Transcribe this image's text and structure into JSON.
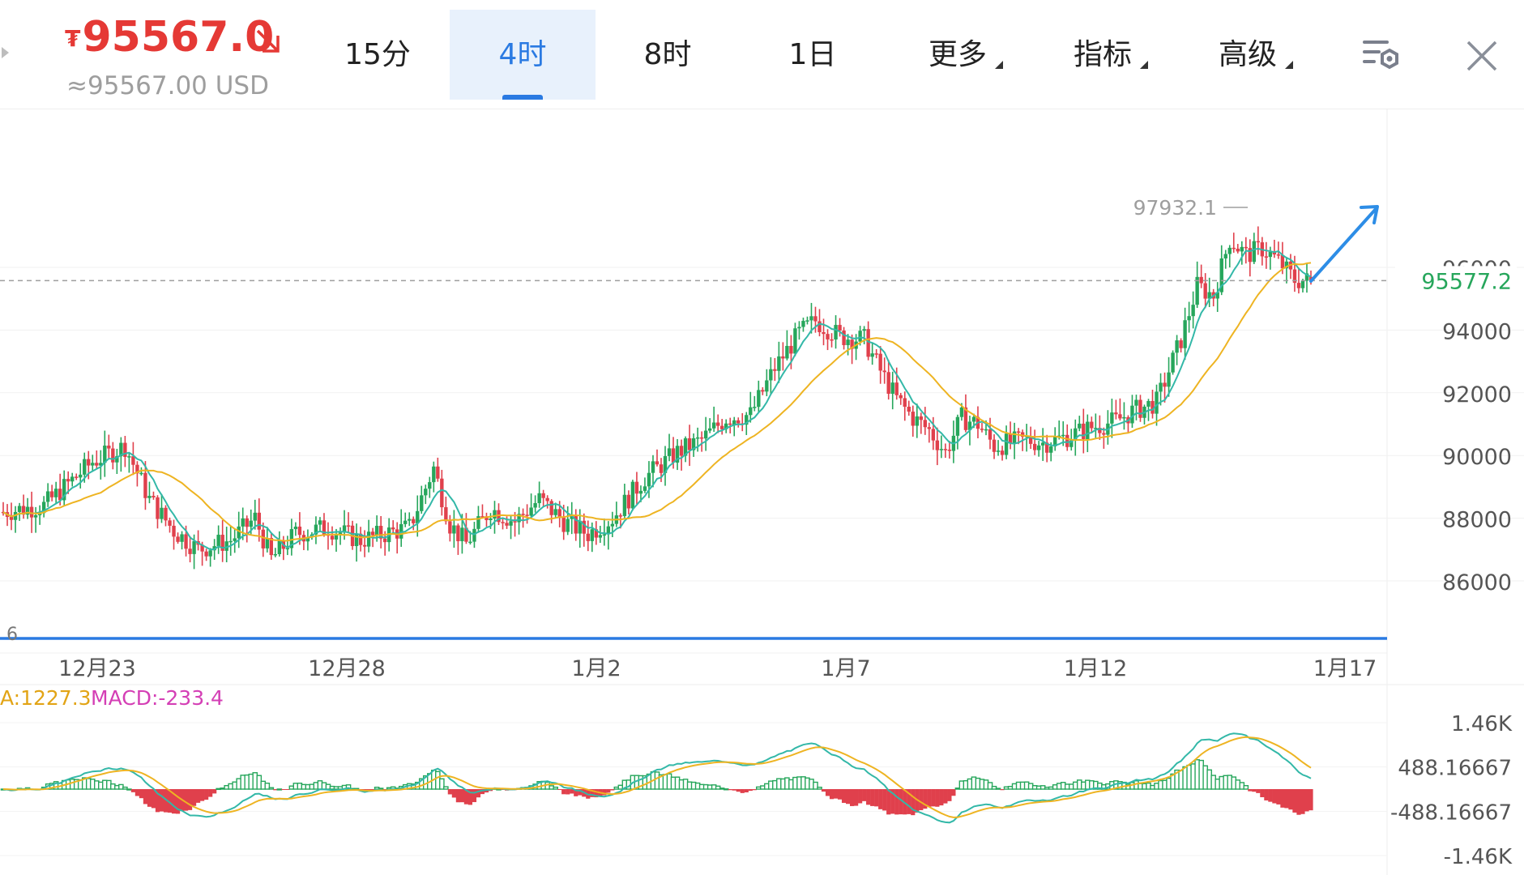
{
  "header": {
    "currency_symbol": "₮",
    "price": "95567.0",
    "price_usd": "≈95567.00 USD",
    "price_direction": "down",
    "price_color": "#e53935"
  },
  "tabs": [
    {
      "label": "15分",
      "active": false,
      "dropdown": false
    },
    {
      "label": "4时",
      "active": true,
      "dropdown": false
    },
    {
      "label": "8时",
      "active": false,
      "dropdown": false
    },
    {
      "label": "1日",
      "active": false,
      "dropdown": false
    },
    {
      "label": "更多",
      "active": false,
      "dropdown": true
    },
    {
      "label": "指标",
      "active": false,
      "dropdown": true
    },
    {
      "label": "高级",
      "active": false,
      "dropdown": true
    }
  ],
  "icons": {
    "settings": "chart-settings-icon",
    "close": "close-icon",
    "back": "back-arrow-icon"
  },
  "chart_data": {
    "type": "candlestick",
    "interval": "4时",
    "colors": {
      "up": "#26a65b",
      "down": "#e0404c",
      "ma_fast": "#33b8a8",
      "ma_slow": "#eeb422",
      "last_price": "#26a65b",
      "arrow": "#2d8de6",
      "line": "#2a7ae2"
    },
    "y_ticks": [
      86000,
      88000,
      90000,
      92000,
      94000,
      96000
    ],
    "ylim": [
      84000,
      98800
    ],
    "x_labels": [
      "12月23",
      "12月28",
      "1月2",
      "1月7",
      "1月12",
      "1月17"
    ],
    "high_label": "97932.1",
    "last_price_label": "95577.2",
    "last_price": 95577.2,
    "edge_label": "6",
    "trend_arrow": "up",
    "close_path": [
      [
        0,
        88200
      ],
      [
        10,
        88400
      ],
      [
        22,
        89800
      ],
      [
        30,
        90300
      ],
      [
        36,
        88600
      ],
      [
        42,
        87600
      ],
      [
        48,
        87000
      ],
      [
        56,
        87300
      ],
      [
        62,
        88000
      ],
      [
        66,
        86700
      ],
      [
        72,
        87500
      ],
      [
        80,
        87700
      ],
      [
        88,
        87300
      ],
      [
        100,
        87700
      ],
      [
        106,
        89600
      ],
      [
        110,
        87800
      ],
      [
        114,
        87200
      ],
      [
        120,
        88300
      ],
      [
        126,
        87900
      ],
      [
        132,
        88600
      ],
      [
        138,
        87900
      ],
      [
        144,
        87500
      ],
      [
        150,
        88000
      ],
      [
        158,
        89300
      ],
      [
        166,
        90100
      ],
      [
        172,
        90500
      ],
      [
        178,
        91200
      ],
      [
        184,
        91300
      ],
      [
        190,
        92800
      ],
      [
        196,
        93900
      ],
      [
        200,
        94300
      ],
      [
        206,
        93800
      ],
      [
        212,
        93700
      ],
      [
        216,
        92700
      ],
      [
        220,
        91800
      ],
      [
        224,
        91200
      ],
      [
        228,
        90800
      ],
      [
        232,
        90100
      ],
      [
        236,
        91200
      ],
      [
        240,
        91000
      ],
      [
        244,
        90300
      ],
      [
        252,
        90500
      ],
      [
        256,
        90400
      ],
      [
        262,
        90600
      ],
      [
        268,
        90900
      ],
      [
        274,
        91100
      ],
      [
        278,
        91400
      ],
      [
        284,
        91700
      ],
      [
        290,
        93700
      ],
      [
        294,
        95400
      ],
      [
        298,
        95100
      ],
      [
        302,
        96900
      ],
      [
        306,
        96400
      ],
      [
        310,
        96600
      ],
      [
        314,
        96200
      ],
      [
        318,
        95600
      ],
      [
        322,
        95570
      ]
    ],
    "macd": {
      "label_dea": "A:1227.3",
      "label_macd": "MACD:-233.4",
      "y_ticks": [
        "1.46K",
        "488.16667",
        "-488.16667",
        "-1.46K"
      ],
      "y_values": [
        1460,
        488.16667,
        -488.16667,
        -1460
      ],
      "ylim": [
        -1700,
        1750
      ]
    }
  }
}
